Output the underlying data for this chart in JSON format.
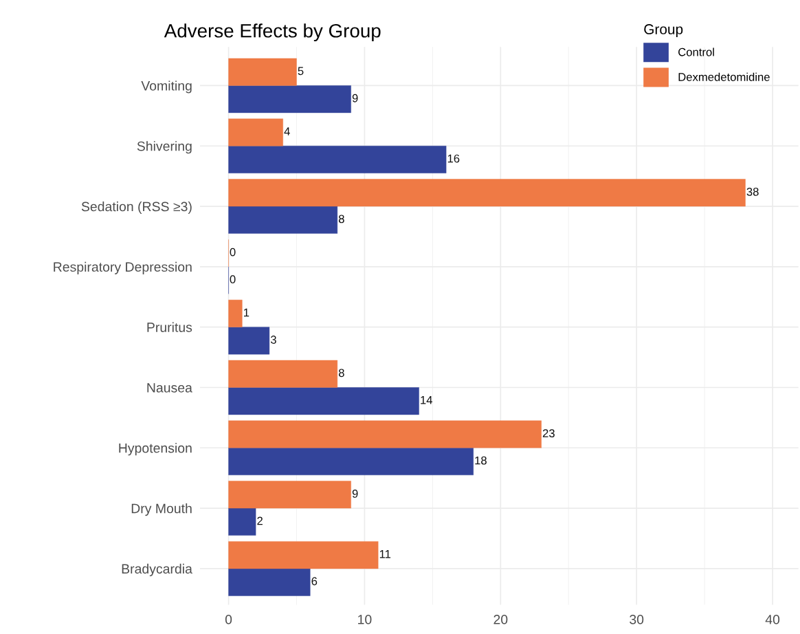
{
  "chart_data": {
    "type": "bar",
    "orientation": "horizontal",
    "title": "Adverse Effects by Group",
    "legend_title": "Group",
    "categories": [
      "Vomiting",
      "Shivering",
      "Sedation (RSS ≥3)",
      "Respiratory Depression",
      "Pruritus",
      "Nausea",
      "Hypotension",
      "Dry Mouth",
      "Bradycardia"
    ],
    "series": [
      {
        "name": "Control",
        "color": "#33449a",
        "values": [
          9,
          16,
          8,
          0,
          3,
          14,
          18,
          2,
          6
        ]
      },
      {
        "name": "Dexmedetomidine",
        "color": "#ef7a45",
        "values": [
          5,
          4,
          38,
          0,
          1,
          8,
          23,
          9,
          11
        ]
      }
    ],
    "xlim": [
      -2.1,
      41.9
    ],
    "xticks": [
      0,
      10,
      20,
      30,
      40
    ],
    "grid": true,
    "legend": "top right",
    "data_labels": true
  }
}
